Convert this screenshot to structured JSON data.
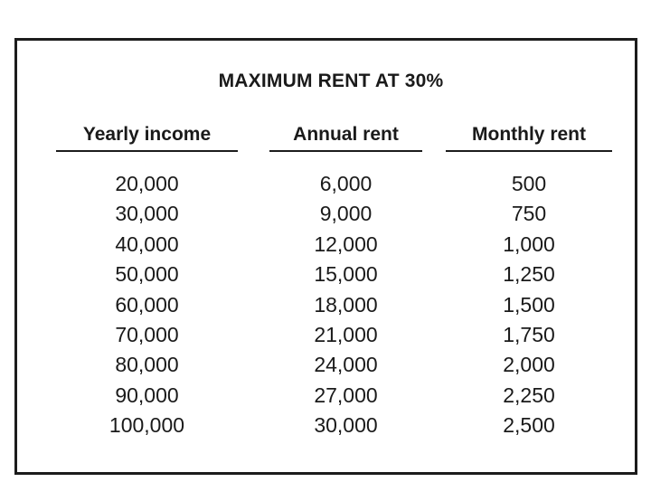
{
  "title": "MAXIMUM RENT AT 30%",
  "table": {
    "headers": {
      "yearly_income": "Yearly income",
      "annual_rent": "Annual rent",
      "monthly_rent": "Monthly rent"
    },
    "rows": [
      {
        "yearly": "20,000",
        "annual": "6,000",
        "monthly": "500"
      },
      {
        "yearly": "30,000",
        "annual": "9,000",
        "monthly": "750"
      },
      {
        "yearly": "40,000",
        "annual": "12,000",
        "monthly": "1,000"
      },
      {
        "yearly": "50,000",
        "annual": "15,000",
        "monthly": "1,250"
      },
      {
        "yearly": "60,000",
        "annual": "18,000",
        "monthly": "1,500"
      },
      {
        "yearly": "70,000",
        "annual": "21,000",
        "monthly": "1,750"
      },
      {
        "yearly": "80,000",
        "annual": "24,000",
        "monthly": "2,000"
      },
      {
        "yearly": "90,000",
        "annual": "27,000",
        "monthly": "2,250"
      },
      {
        "yearly": "100,000",
        "annual": "30,000",
        "monthly": "2,500"
      }
    ]
  },
  "colors": {
    "border": "#1c1c1c",
    "text": "#1a1a1a",
    "background": "#ffffff"
  }
}
